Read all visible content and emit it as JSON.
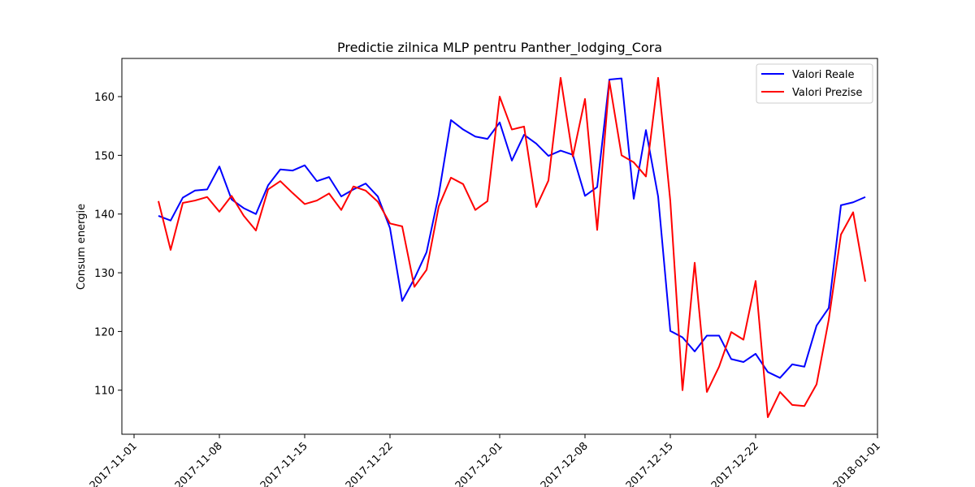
{
  "chart_data": {
    "type": "line",
    "title": "Predictie zilnica MLP pentru Panther_lodging_Cora",
    "xlabel": "",
    "ylabel": "Consum energie",
    "x_start": "2017-11-03",
    "x_end": "2017-12-31",
    "xlim": [
      "2017-10-31",
      "2018-01-01"
    ],
    "ylim": [
      102.5,
      166.5
    ],
    "x_ticks": [
      "2017-11-01",
      "2017-11-08",
      "2017-11-15",
      "2017-11-22",
      "2017-12-01",
      "2017-12-08",
      "2017-12-15",
      "2017-12-22",
      "2018-01-01"
    ],
    "y_ticks": [
      110,
      120,
      130,
      140,
      150,
      160
    ],
    "grid": false,
    "legend_position": "top-right",
    "series": [
      {
        "name": "Valori Reale",
        "color": "#0000ff",
        "values": [
          139.7,
          138.9,
          142.8,
          144.0,
          144.2,
          148.1,
          142.5,
          141.0,
          140.0,
          144.9,
          147.6,
          147.4,
          148.3,
          145.6,
          146.3,
          143.0,
          144.2,
          145.2,
          143.0,
          137.6,
          125.2,
          129.0,
          133.5,
          143.3,
          156.0,
          154.4,
          153.2,
          152.8,
          155.6,
          149.1,
          153.5,
          152.0,
          149.9,
          150.8,
          150.1,
          143.1,
          144.6,
          162.9,
          163.1,
          142.6,
          154.3,
          143.0,
          120.1,
          119.0,
          116.6,
          119.3,
          119.3,
          115.3,
          114.8,
          116.2,
          113.1,
          112.1,
          114.4,
          114.0,
          121.0,
          124.0,
          141.5,
          142.0,
          142.9
        ],
        "marker": "none"
      },
      {
        "name": "Valori Prezise",
        "color": "#ff0000",
        "values": [
          142.2,
          133.9,
          141.9,
          142.3,
          142.9,
          140.4,
          143.1,
          139.7,
          137.2,
          144.2,
          145.6,
          143.6,
          141.7,
          142.3,
          143.5,
          140.7,
          144.7,
          144.0,
          142.1,
          138.4,
          137.9,
          127.6,
          130.5,
          141.3,
          146.2,
          145.1,
          140.7,
          142.2,
          160.0,
          154.4,
          154.9,
          141.2,
          145.7,
          163.2,
          149.8,
          159.6,
          137.3,
          162.6,
          150.0,
          148.8,
          146.4,
          163.2,
          142.2,
          110.0,
          131.7,
          109.7,
          114.0,
          119.9,
          118.6,
          128.6,
          105.4,
          109.7,
          107.5,
          107.3,
          111.0,
          122.0,
          136.5,
          140.3,
          128.5
        ],
        "marker": "none"
      }
    ]
  }
}
